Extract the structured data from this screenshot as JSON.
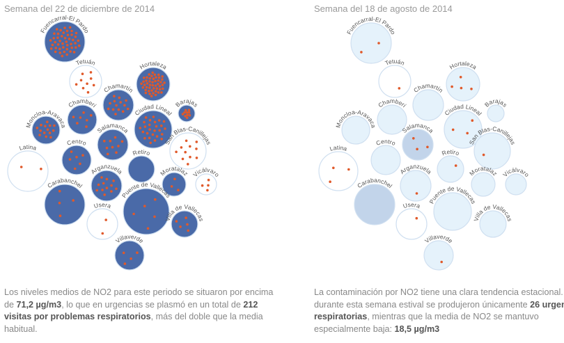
{
  "colors": {
    "high": "#4a6aa8",
    "mid": "#c2d4ea",
    "low": "#e5f2fb",
    "empty": "#ffffff",
    "stroke": "#cfdff0",
    "dot": "#e0592a"
  },
  "panels": [
    {
      "title": "Semana del 22 de diciembre de 2014",
      "description": {
        "p1": "Los niveles medios de NO2 para este periodo se situaron por encima de ",
        "b1": "71,2 µg/m3",
        "p2": ", lo que en urgencias se plasmó en un total de ",
        "b2": "212 visitas por problemas respiratorios",
        "p3": ", más del doble que la media habitual."
      },
      "districts": [
        {
          "name": "Fuencarral-El Pardo",
          "level": "high",
          "dots": 45
        },
        {
          "name": "Tetuán",
          "level": "empty",
          "dots": 9
        },
        {
          "name": "Hortaleza",
          "level": "high",
          "dots": 48
        },
        {
          "name": "Chamartín",
          "level": "high",
          "dots": 14
        },
        {
          "name": "Chamberí",
          "level": "high",
          "dots": 7
        },
        {
          "name": "Barajas",
          "level": "high",
          "dots": 10
        },
        {
          "name": "Moncloa-Aravaca",
          "level": "high",
          "dots": 14
        },
        {
          "name": "Ciudad Lineal",
          "level": "high",
          "dots": 26
        },
        {
          "name": "Salamanca",
          "level": "high",
          "dots": 9
        },
        {
          "name": "San Blas-Canillejas",
          "level": "empty",
          "dots": 11
        },
        {
          "name": "Latina",
          "level": "empty",
          "dots": 2
        },
        {
          "name": "Centro",
          "level": "high",
          "dots": 6
        },
        {
          "name": "Retiro",
          "level": "high",
          "dots": 0
        },
        {
          "name": "Vicálvaro",
          "level": "empty",
          "dots": 4
        },
        {
          "name": "Arganzuela",
          "level": "high",
          "dots": 12
        },
        {
          "name": "Moratalaz",
          "level": "high",
          "dots": 3
        },
        {
          "name": "Carabanchel",
          "level": "high",
          "dots": 4
        },
        {
          "name": "Puente de Vallecas",
          "level": "high",
          "dots": 5
        },
        {
          "name": "Usera",
          "level": "empty",
          "dots": 2
        },
        {
          "name": "Villa de Vallecas",
          "level": "high",
          "dots": 5
        },
        {
          "name": "Villaverde",
          "level": "high",
          "dots": 4
        }
      ]
    },
    {
      "title": "Semana del 18 de agosto de 2014",
      "description": {
        "p1": "La contaminación por NO2 tiene una clara tendencia estacional. Así, durante esta semana estival se produjeron únicamente ",
        "b1": "26 urgencias respiratorias",
        "p2": ", mientras que la media de NO2 se mantuvo especialmente baja: ",
        "b2": "18,5 µg/m3",
        "p3": ""
      },
      "districts": [
        {
          "name": "Fuencarral-El Pardo",
          "level": "low",
          "dots": 2
        },
        {
          "name": "Tetuán",
          "level": "empty",
          "dots": 1
        },
        {
          "name": "Hortaleza",
          "level": "low",
          "dots": 4
        },
        {
          "name": "Chamartín",
          "level": "low",
          "dots": 0
        },
        {
          "name": "Chamberí",
          "level": "low",
          "dots": 0
        },
        {
          "name": "Barajas",
          "level": "low",
          "dots": 0
        },
        {
          "name": "Moncloa-Aravaca",
          "level": "low",
          "dots": 0
        },
        {
          "name": "Ciudad Lineal",
          "level": "low",
          "dots": 3
        },
        {
          "name": "Salamanca",
          "level": "mid",
          "dots": 3
        },
        {
          "name": "San Blas-Canillejas",
          "level": "low",
          "dots": 1
        },
        {
          "name": "Latina",
          "level": "empty",
          "dots": 3
        },
        {
          "name": "Centro",
          "level": "low",
          "dots": 0
        },
        {
          "name": "Retiro",
          "level": "low",
          "dots": 1
        },
        {
          "name": "Vicálvaro",
          "level": "low",
          "dots": 0
        },
        {
          "name": "Arganzuela",
          "level": "low",
          "dots": 1
        },
        {
          "name": "Moratalaz",
          "level": "low",
          "dots": 0
        },
        {
          "name": "Carabanchel",
          "level": "mid",
          "dots": 0
        },
        {
          "name": "Puente de Vallecas",
          "level": "low",
          "dots": 0
        },
        {
          "name": "Usera",
          "level": "empty",
          "dots": 1
        },
        {
          "name": "Villa de Vallecas",
          "level": "low",
          "dots": 0
        },
        {
          "name": "Villaverde",
          "level": "low",
          "dots": 1
        }
      ]
    }
  ]
}
